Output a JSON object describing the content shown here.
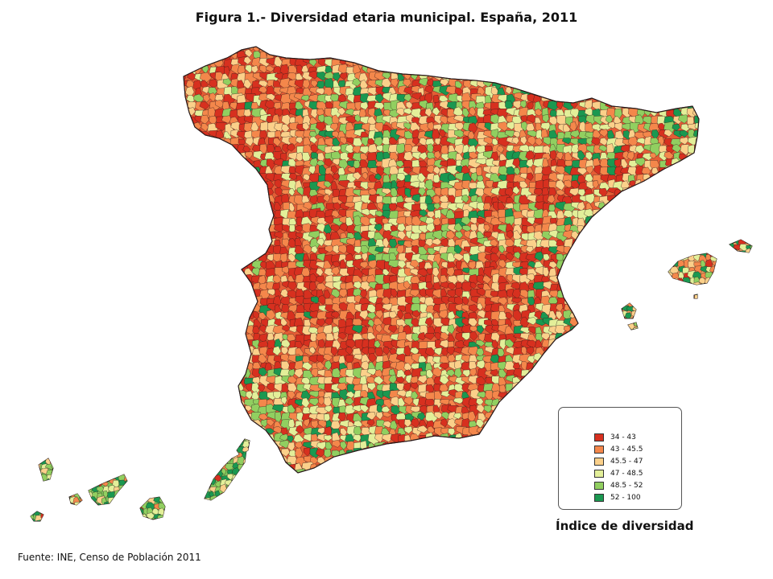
{
  "title": "Figura 1.- Diversidad etaria municipal. España, 2011",
  "legend": {
    "title": "Índice de diversidad",
    "classes": [
      {
        "label": "34 - 43",
        "color": "#d7301f"
      },
      {
        "label": "43 - 45.5",
        "color": "#f4874b"
      },
      {
        "label": "45.5 - 47",
        "color": "#fbd08a"
      },
      {
        "label": "47 - 48.5",
        "color": "#e3ef99"
      },
      {
        "label": "48.5 - 52",
        "color": "#91cf60"
      },
      {
        "label": "52 - 100",
        "color": "#1a9850"
      }
    ]
  },
  "source": "Fuente: INE, Censo de Población 2011",
  "colors": {
    "border": "#2a1a1a",
    "background": "#ffffff"
  }
}
